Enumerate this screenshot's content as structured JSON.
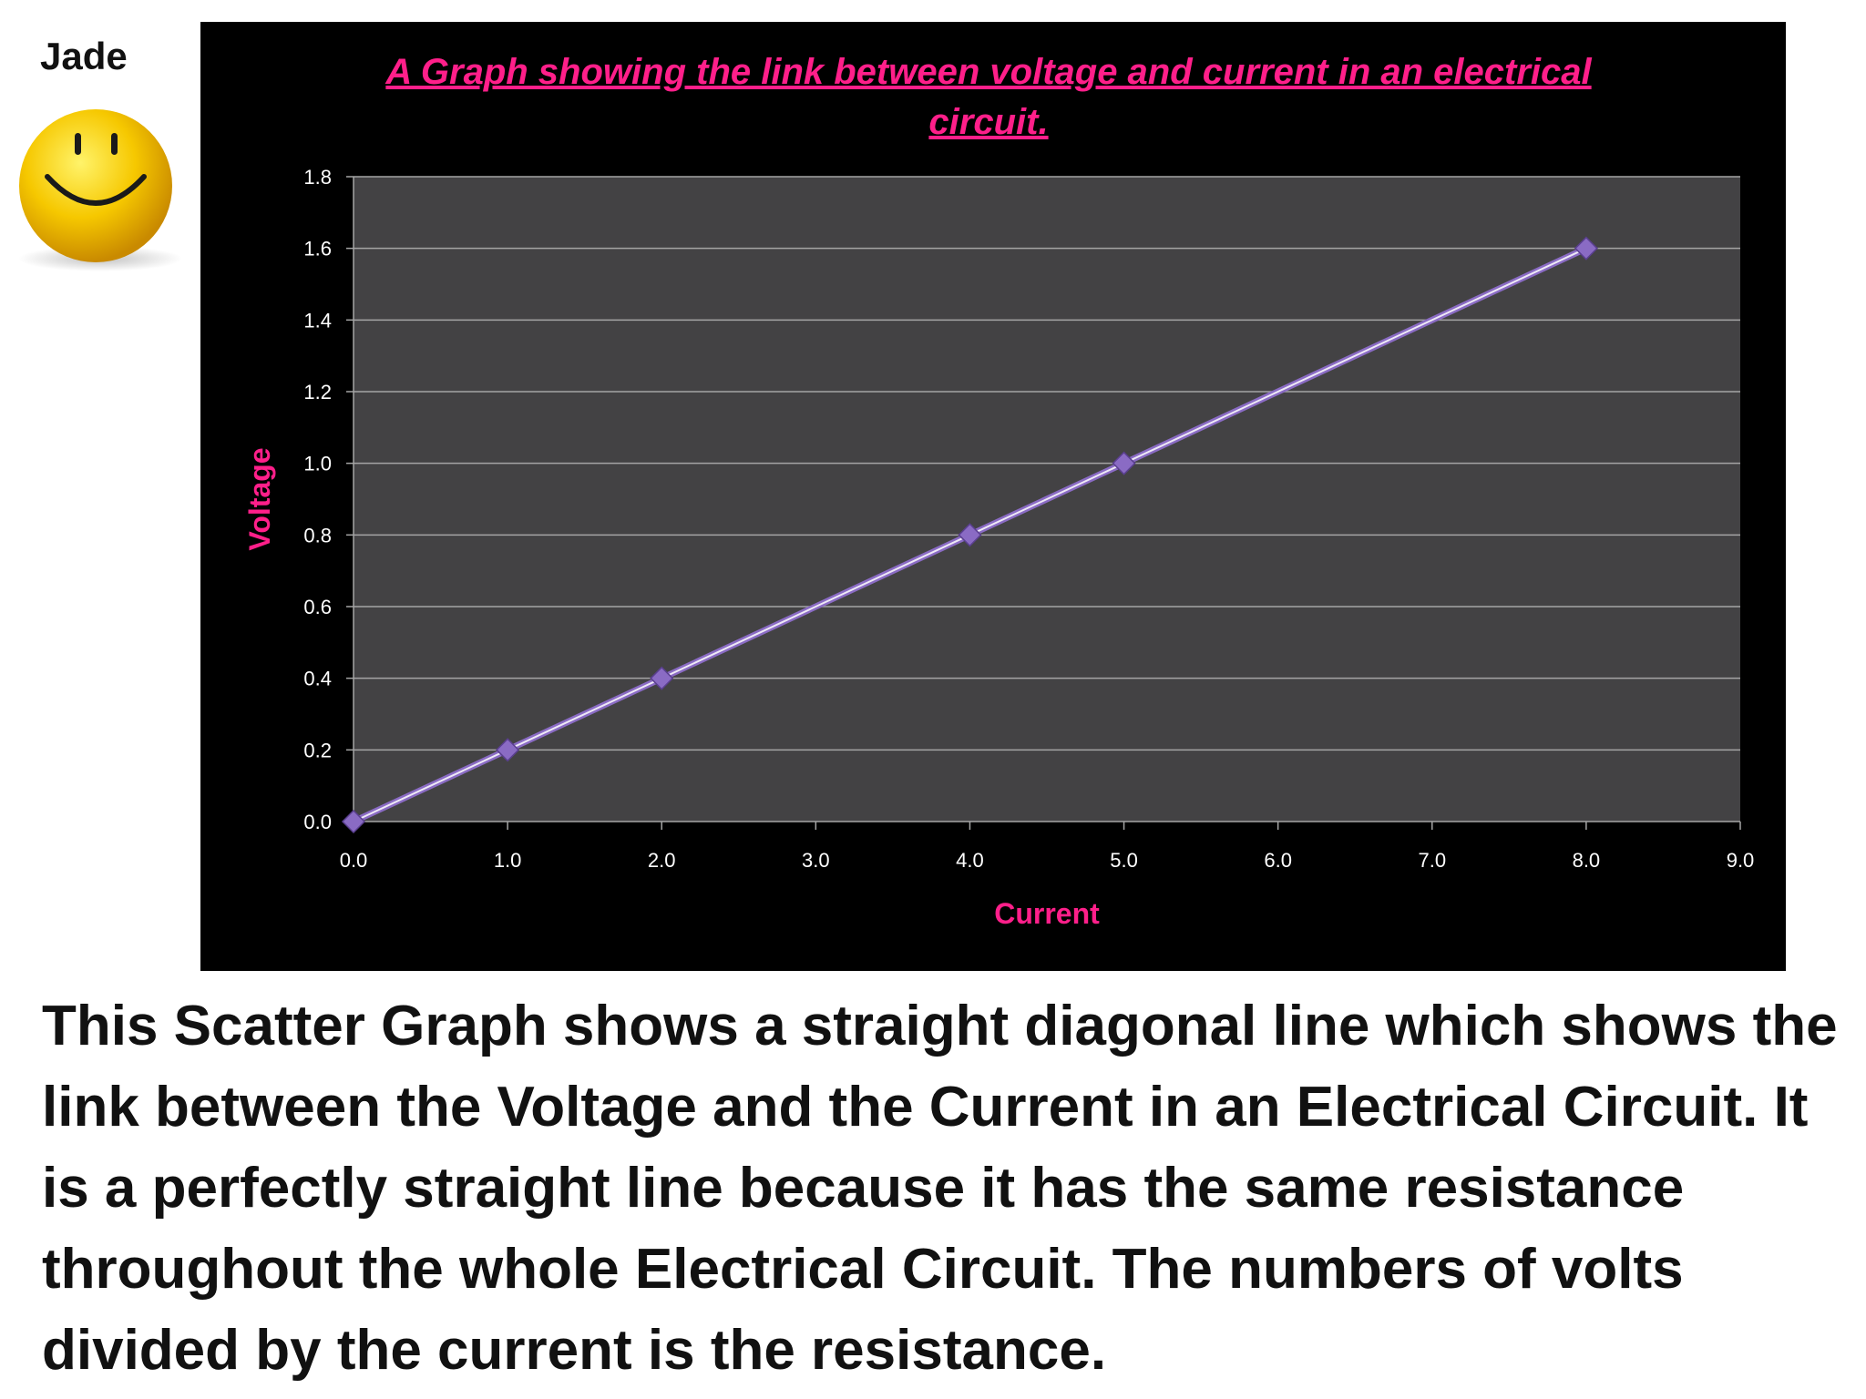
{
  "author": "Jade",
  "description": "This Scatter Graph shows a straight diagonal line which shows the link between the Voltage and the Current in an Electrical Circuit. It is a perfectly straight line because it has the same resistance throughout the whole Electrical Circuit. The numbers of volts divided by the current is the resistance.",
  "colors": {
    "panel": "#000000",
    "plot_area": "#434244",
    "title": "#ff1f8a",
    "series": "#8a6bc4",
    "highlight": "#ffffff"
  },
  "chart_data": {
    "type": "scatter",
    "title": "A Graph showing  the link between voltage and current in an electrical circuit.",
    "xlabel": "Current",
    "ylabel": "Voltage",
    "xlim": [
      0,
      9
    ],
    "ylim": [
      0,
      1.8
    ],
    "xticks": [
      "0.0",
      "1.0",
      "2.0",
      "3.0",
      "4.0",
      "5.0",
      "6.0",
      "7.0",
      "8.0",
      "9.0"
    ],
    "yticks": [
      "0.0",
      "0.2",
      "0.4",
      "0.6",
      "0.8",
      "1.0",
      "1.2",
      "1.4",
      "1.6",
      "1.8"
    ],
    "grid": true,
    "legend": "none",
    "series": [
      {
        "points": [
          {
            "x": 0,
            "y": 0
          },
          {
            "x": 1,
            "y": 0.2
          },
          {
            "x": 2,
            "y": 0.4
          },
          {
            "x": 4,
            "y": 0.8
          },
          {
            "x": 5,
            "y": 1.0
          },
          {
            "x": 8,
            "y": 1.6
          }
        ]
      }
    ]
  }
}
